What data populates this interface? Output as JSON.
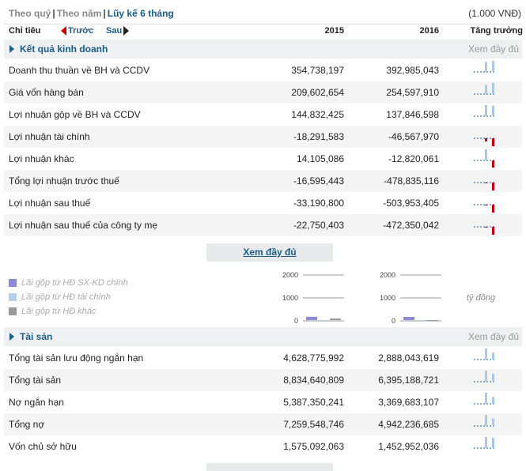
{
  "period": {
    "tabs": [
      "Theo quý",
      "Theo năm",
      "Lũy kế 6 tháng"
    ],
    "active_index": 2
  },
  "unit_label": "(1.000 VNĐ)",
  "columns": {
    "indicator": "Chỉ tiêu",
    "prev": "Trước",
    "next": "Sau",
    "year1": "2015",
    "year2": "2016",
    "growth": "Tăng trưởng"
  },
  "colors": {
    "link": "#1a5c8a",
    "positive_bar": "#a9c9e8",
    "negative_bar": "#c0000c"
  },
  "sections": [
    {
      "title": "Kết quả kinh doanh",
      "more": "Xem đầy đủ",
      "rows": [
        {
          "label": "Doanh thu thuần về BH và CCDV",
          "v2015": "354,738,197",
          "v2016": "392,985,043",
          "n2015": 354738197,
          "n2016": 392985043
        },
        {
          "label": "Giá vốn hàng bán",
          "v2015": "209,602,654",
          "v2016": "254,597,910",
          "n2015": 209602654,
          "n2016": 254597910
        },
        {
          "label": "Lợi nhuận gộp về BH và CCDV",
          "v2015": "144,832,425",
          "v2016": "137,846,598",
          "n2015": 144832425,
          "n2016": 137846598
        },
        {
          "label": "Lợi nhuận tài chính",
          "v2015": "-18,291,583",
          "v2016": "-46,567,970",
          "n2015": -18291583,
          "n2016": -46567970
        },
        {
          "label": "Lợi nhuận khác",
          "v2015": "14,105,086",
          "v2016": "-12,820,061",
          "n2015": 14105086,
          "n2016": -12820061
        },
        {
          "label": "Tổng lợi nhuận trước thuế",
          "v2015": "-16,595,443",
          "v2016": "-478,835,116",
          "n2015": -16595443,
          "n2016": -478835116
        },
        {
          "label": "Lợi nhuận sau thuế",
          "v2015": "-33,190,800",
          "v2016": "-503,953,405",
          "n2015": -33190800,
          "n2016": -503953405
        },
        {
          "label": "Lợi nhuận sau thuế của công ty mẹ",
          "v2015": "-22,750,403",
          "v2016": "-472,350,042",
          "n2015": -22750403,
          "n2016": -472350042
        }
      ]
    },
    {
      "title": "Tài sản",
      "more": "Xem đầy đủ",
      "rows": [
        {
          "label": "Tổng tài sản lưu động ngắn hạn",
          "v2015": "4,628,775,992",
          "v2016": "2,888,043,619",
          "n2015": 4628775992,
          "n2016": 2888043619
        },
        {
          "label": "Tổng tài sản",
          "v2015": "8,834,640,809",
          "v2016": "6,395,188,721",
          "n2015": 8834640809,
          "n2016": 6395188721
        },
        {
          "label": "Nợ ngắn hạn",
          "v2015": "5,387,350,241",
          "v2016": "3,369,683,107",
          "n2015": 5387350241,
          "n2016": 3369683107
        },
        {
          "label": "Tổng nợ",
          "v2015": "7,259,548,746",
          "v2016": "4,942,236,685",
          "n2015": 7259548746,
          "n2016": 4942236685
        },
        {
          "label": "Vốn chủ sở hữu",
          "v2015": "1,575,092,063",
          "v2016": "1,452,952,036",
          "n2015": 1575092063,
          "n2016": 1452952036
        }
      ]
    }
  ],
  "more_button": "Xem đầy đủ",
  "legend": [
    {
      "label": "Lãi gộp từ HĐ SX-KD chính",
      "color": "#8c8ad6"
    },
    {
      "label": "Lãi gộp từ HĐ tài chính",
      "color": "#b7cdea"
    },
    {
      "label": "Lãi gộp từ HĐ khác",
      "color": "#9a9a9a"
    }
  ],
  "chart_data": [
    {
      "type": "bar",
      "categories": [
        "Lãi gộp từ HĐ SX-KD chính",
        "Lãi gộp từ HĐ tài chính",
        "Lãi gộp từ HĐ khác"
      ],
      "values": [
        145,
        0,
        14
      ],
      "ylim": [
        0,
        2000
      ],
      "yticks": [
        "2000",
        "1000",
        "0"
      ],
      "xlabel": "",
      "ylabel": "",
      "title": ""
    },
    {
      "type": "bar",
      "categories": [
        "Lãi gộp từ HĐ SX-KD chính",
        "Lãi gộp từ HĐ tài chính",
        "Lãi gộp từ HĐ khác"
      ],
      "values": [
        138,
        0,
        0
      ],
      "ylim": [
        0,
        2000
      ],
      "yticks": [
        "2000",
        "1000",
        "0"
      ],
      "xlabel": "",
      "ylabel": "",
      "title": ""
    }
  ],
  "chart_unit": "tỷ đồng"
}
